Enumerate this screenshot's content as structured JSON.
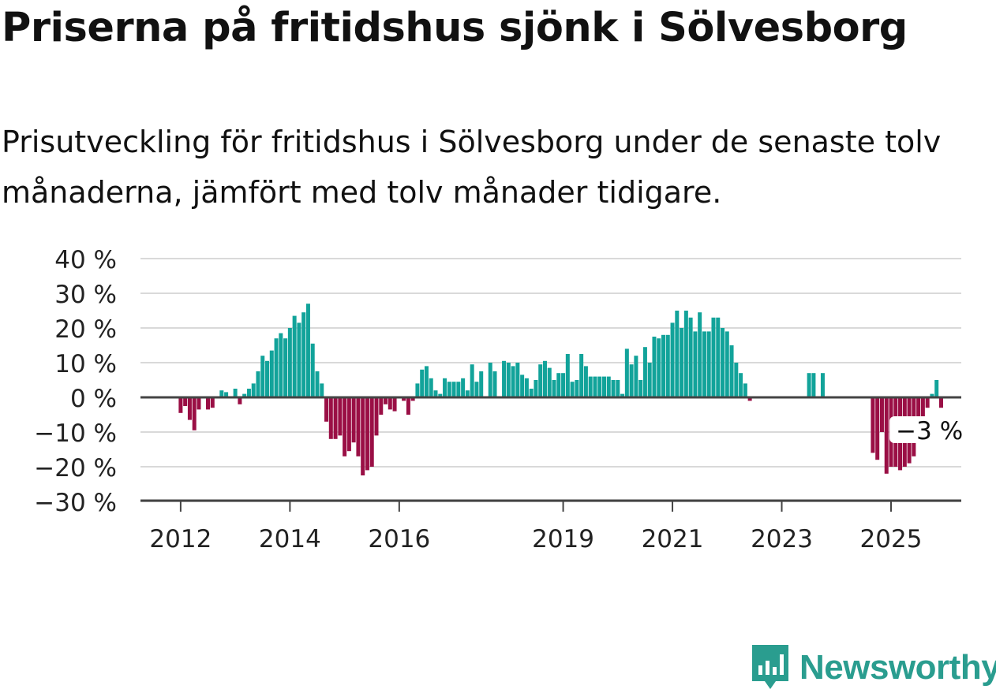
{
  "header": {
    "title": "Priserna på fritidshus sjönk i Sölvesborg",
    "subtitle": "Prisutveckling för fritidshus i Sölvesborg under de senaste tolv månaderna, jämfört med tolv månader tidigare."
  },
  "brand": {
    "name": "Newsworthy",
    "icon": "newsworthy-logo-icon",
    "color": "#2a9d8f"
  },
  "colors": {
    "positive": "#12a39a",
    "negative": "#9a0f45",
    "grid": "#d9d9d9",
    "zero_line": "#444444"
  },
  "chart_data": {
    "type": "bar",
    "title": "Priserna på fritidshus sjönk i Sölvesborg",
    "subtitle": "Prisutveckling för fritidshus i Sölvesborg under de senaste tolv månaderna, jämfört med tolv månader tidigare.",
    "ylim": [
      -30,
      40
    ],
    "y_ticks": [
      "40 %",
      "30 %",
      "20 %",
      "10 %",
      "0 %",
      "−10 %",
      "−20 %",
      "−30 %"
    ],
    "y_tick_values": [
      40,
      30,
      20,
      10,
      0,
      -10,
      -20,
      -30
    ],
    "x_ticks": [
      "2012",
      "2014",
      "2016",
      "2019",
      "2021",
      "2023",
      "2025"
    ],
    "x_tick_years": [
      2012,
      2014,
      2016,
      2019,
      2021,
      2023,
      2025
    ],
    "start": "2011-12",
    "interval": "month",
    "grid": true,
    "annotation": {
      "text": "−3 %",
      "value": -3,
      "month": "2025-09"
    },
    "values": [
      null,
      -4.5,
      -2.5,
      -6.5,
      -9.5,
      -3.5,
      null,
      -3.5,
      -3,
      null,
      2,
      1.5,
      0,
      2.5,
      -2,
      1,
      2.5,
      4,
      7.5,
      12,
      10.5,
      13.5,
      17,
      18.5,
      17,
      20,
      23.5,
      21.5,
      24.5,
      27,
      15.5,
      7.5,
      4,
      -7,
      -12,
      -12,
      -11,
      -17,
      -15.5,
      -13,
      -17,
      -22.5,
      -21,
      -20,
      -11,
      -5,
      -2,
      -3.5,
      -4,
      null,
      -1,
      -5,
      -1,
      4,
      8,
      9,
      5.5,
      2,
      1,
      5.5,
      4.5,
      4.5,
      4.5,
      5.5,
      2,
      9.5,
      4.5,
      7.5,
      null,
      10,
      7.5,
      null,
      10.5,
      10,
      9,
      10,
      6.5,
      5.5,
      2.5,
      5,
      9.5,
      10.5,
      8.5,
      5,
      7,
      7,
      12.5,
      4.5,
      5,
      12.5,
      9,
      6,
      6,
      6,
      6,
      6,
      5,
      5,
      1,
      14,
      9.5,
      12,
      5,
      14.5,
      10,
      17.5,
      17,
      18,
      18,
      21.5,
      25,
      20,
      25,
      23,
      19,
      24.5,
      19,
      19,
      23,
      23,
      20,
      19,
      15,
      10,
      7,
      4,
      -1,
      null,
      null,
      null,
      null,
      null,
      null,
      null,
      null,
      null,
      null,
      null,
      null,
      7,
      7,
      null,
      7,
      null,
      null,
      null,
      null,
      null,
      null,
      null,
      null,
      null,
      null,
      -16,
      -18,
      -10,
      -22,
      -20,
      -20,
      -21,
      -20,
      -19,
      -17,
      -8.5,
      -6,
      -3,
      1,
      5,
      -3
    ]
  }
}
